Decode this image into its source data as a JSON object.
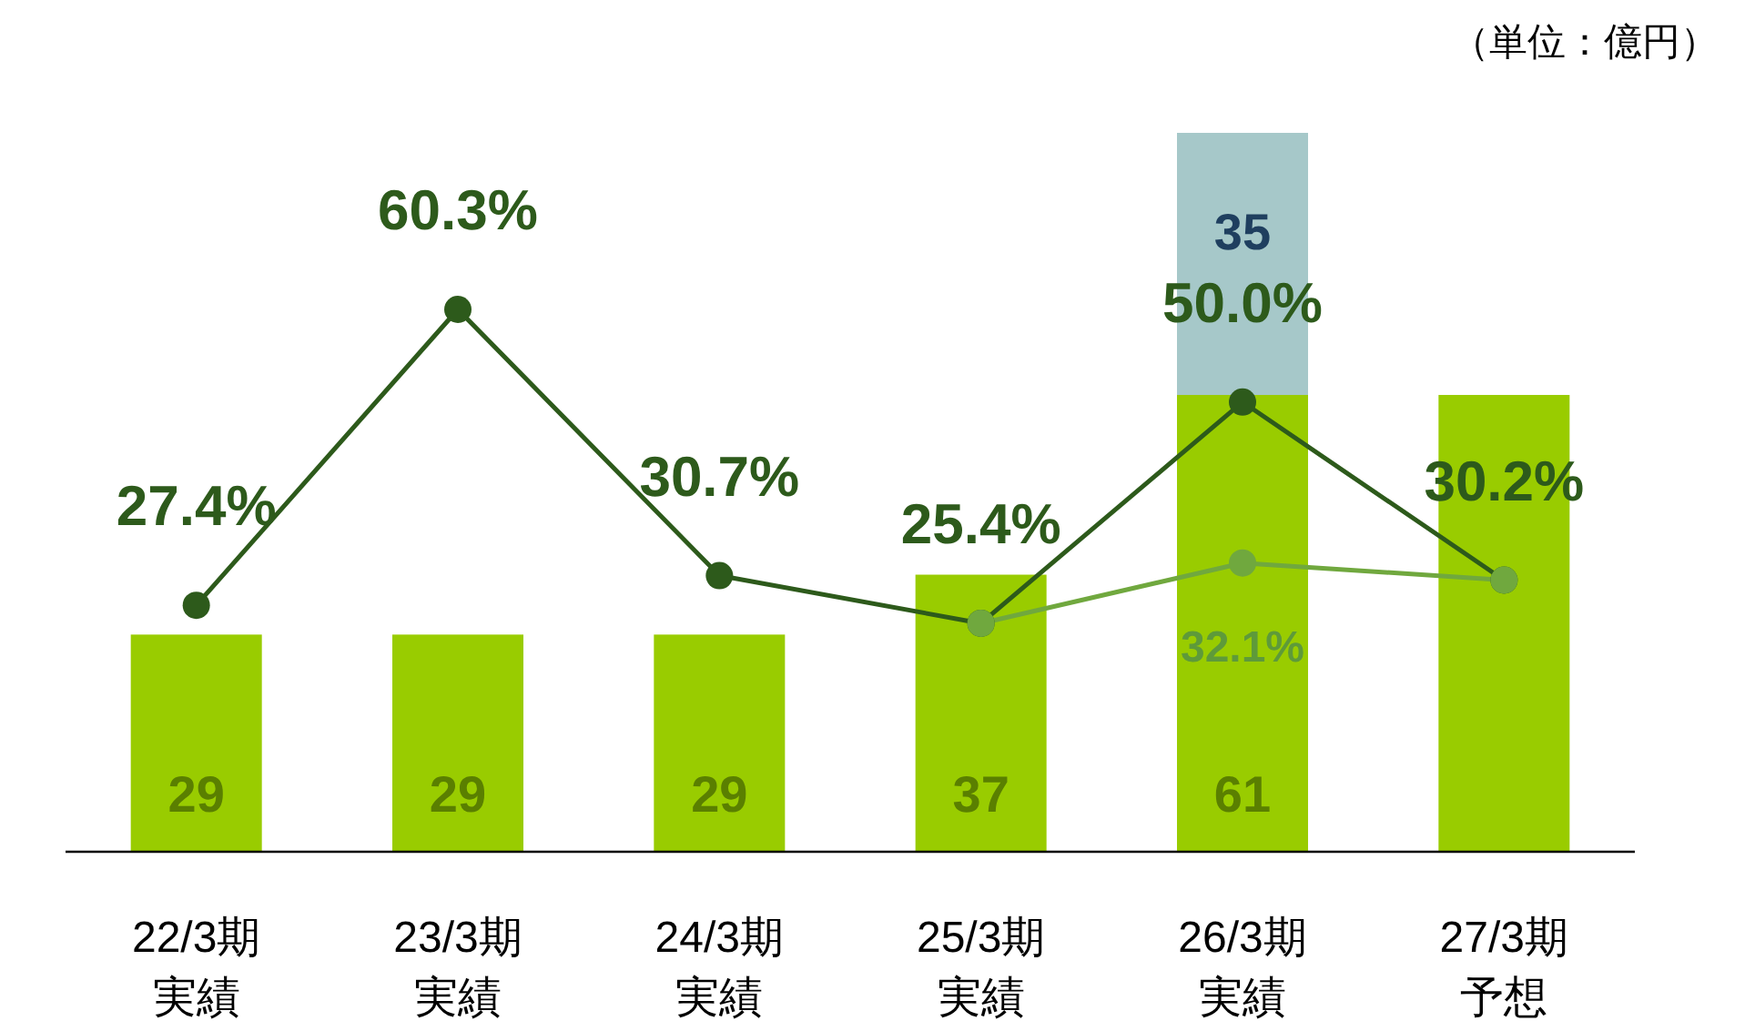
{
  "chart_data": {
    "type": "bar",
    "stacked": true,
    "categories": [
      "22/3期実績",
      "23/3期実績",
      "24/3期実績",
      "25/3期実績",
      "26/3期実績",
      "27/3期予想"
    ],
    "tick_labels": "x",
    "grid": false,
    "marker": "circle",
    "annotations": [
      "（単位：億円）"
    ],
    "series": [
      {
        "color": "#99cc00",
        "values": [
          29,
          29,
          29,
          37,
          61,
          61
        ],
        "value_labels": [
          "29",
          "29",
          "29",
          "37",
          "61",
          null
        ]
      },
      {
        "color": "#a6c8c9",
        "values": [
          null,
          null,
          null,
          null,
          35,
          null
        ],
        "value_labels": [
          null,
          null,
          null,
          null,
          "35",
          null
        ]
      },
      {
        "type": "line",
        "axis": "y2",
        "color": "#2d5a1b",
        "values": [
          27.4,
          60.3,
          30.7,
          25.4,
          50.0,
          30.2
        ],
        "value_labels": [
          "27.4%",
          "60.3%",
          "30.7%",
          "25.4%",
          "50.0%",
          "30.2%"
        ]
      },
      {
        "type": "line",
        "axis": "y2",
        "color": "#70a83e",
        "values": [
          null,
          null,
          null,
          25.4,
          32.1,
          30.2
        ],
        "value_labels": [
          null,
          null,
          null,
          null,
          "32.1%",
          null
        ]
      }
    ]
  }
}
